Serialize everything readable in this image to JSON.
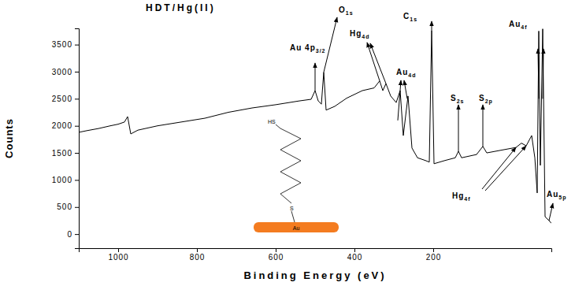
{
  "chart_data": {
    "type": "line",
    "title": "HDT/Hg(II)",
    "x_label": "Binding Energy (eV)",
    "y_label": "Counts",
    "x": [
      1100,
      1080,
      1050,
      1020,
      1000,
      984,
      976,
      968,
      950,
      900,
      840,
      780,
      720,
      660,
      600,
      540,
      510,
      500,
      492,
      484,
      478,
      472,
      450,
      420,
      380,
      350,
      336,
      328,
      320,
      308,
      294,
      284,
      276,
      264,
      254,
      240,
      220,
      210,
      204,
      198,
      170,
      144,
      136,
      128,
      90,
      74,
      64,
      20,
      -10,
      -24,
      -36,
      -50,
      -58,
      -64,
      -68,
      -72,
      -78,
      -84,
      -94,
      -100
    ],
    "values": [
      1880,
      1910,
      1950,
      2000,
      2030,
      2070,
      2170,
      1850,
      1920,
      2000,
      2070,
      2140,
      2250,
      2330,
      2390,
      2460,
      2490,
      2650,
      2460,
      2400,
      2990,
      2290,
      2360,
      2510,
      2650,
      2700,
      2830,
      2650,
      2780,
      2550,
      2430,
      2650,
      1820,
      2550,
      1590,
      1410,
      1360,
      1330,
      3760,
      1300,
      1360,
      1410,
      1530,
      1410,
      1470,
      1620,
      1500,
      1560,
      1600,
      1680,
      1630,
      1820,
      1410,
      760,
      3750,
      1270,
      3790,
      320,
      250,
      200
    ],
    "color": "#000000",
    "xlim": [
      1100,
      -100
    ],
    "ylim": [
      -260,
      3800
    ],
    "xticks": [
      1000,
      800,
      600,
      400,
      200
    ],
    "yticks": [
      0,
      500,
      1000,
      1500,
      2000,
      2500,
      3000,
      3500
    ],
    "grid": false,
    "annotations": [
      {
        "text": "Au 4p",
        "subscript": "3/2",
        "x": [
          500
        ],
        "y": [
          2650
        ]
      },
      {
        "text": "O",
        "subscript": "1s",
        "x": [
          478
        ],
        "y": [
          2990
        ]
      },
      {
        "text": "Hg",
        "subscript": "4d",
        "x": [
          336,
          320
        ],
        "y": [
          2830,
          2780
        ]
      },
      {
        "text": "Au",
        "subscript": "4d",
        "x": [
          290,
          266
        ],
        "y": [
          2100,
          2500
        ]
      },
      {
        "text": "C",
        "subscript": "1s",
        "x": [
          204
        ],
        "y": [
          3760
        ]
      },
      {
        "text": "S",
        "subscript": "2s",
        "x": [
          136
        ],
        "y": [
          1530
        ]
      },
      {
        "text": "S",
        "subscript": "2p",
        "x": [
          74
        ],
        "y": [
          1620
        ]
      },
      {
        "text": "Hg",
        "subscript": "4f",
        "x": [
          -10,
          -36
        ],
        "y": [
          1600,
          1630
        ]
      },
      {
        "text": "Au",
        "subscript": "4f",
        "x": [
          -68,
          -78
        ],
        "y": [
          2500,
          2500
        ]
      },
      {
        "text": "Au",
        "subscript": "5p",
        "x": [
          -94
        ],
        "y": [
          250
        ]
      }
    ],
    "inset": {
      "head": "HS",
      "anchor": "S",
      "substrate": "Au",
      "substrate_color": "#f47c20"
    }
  }
}
